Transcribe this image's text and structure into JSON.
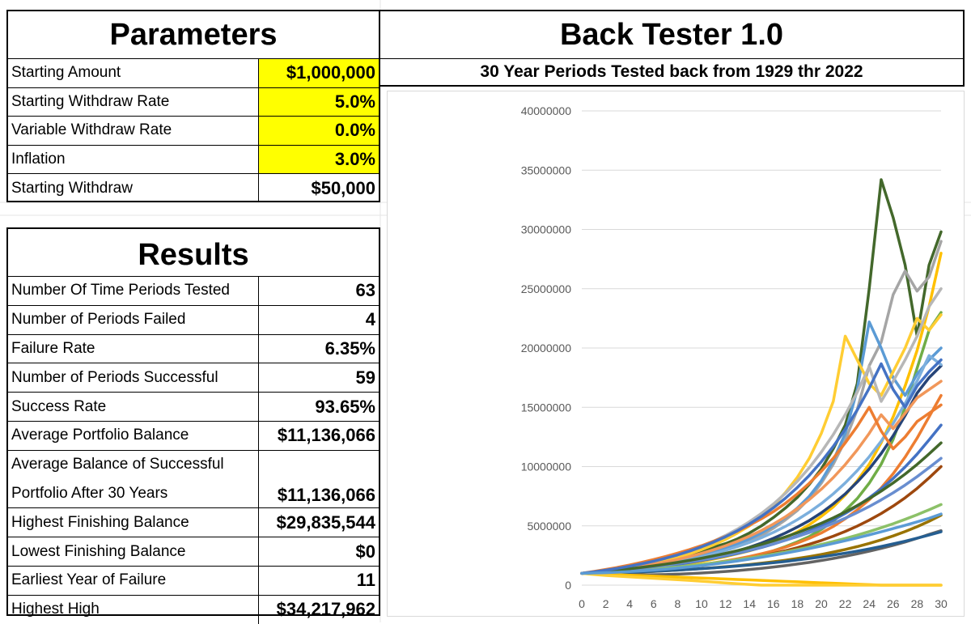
{
  "parameters": {
    "title": "Parameters",
    "rows": [
      {
        "label": "Starting Amount",
        "value": "$1,000,000",
        "highlight": true
      },
      {
        "label": "Starting Withdraw Rate",
        "value": "5.0%",
        "highlight": true
      },
      {
        "label": "Variable Withdraw Rate",
        "value": "0.0%",
        "highlight": true
      },
      {
        "label": "Inflation",
        "value": "3.0%",
        "highlight": true
      },
      {
        "label": "Starting Withdraw",
        "value": "$50,000",
        "highlight": false
      }
    ]
  },
  "results": {
    "title": "Results",
    "rows": [
      {
        "label": "Number Of Time Periods Tested",
        "value": "63"
      },
      {
        "label": "Number of Periods Failed",
        "value": "4"
      },
      {
        "label": "Failure Rate",
        "value": "6.35%"
      },
      {
        "label": "Number of Periods Successful",
        "value": "59"
      },
      {
        "label": "Success Rate",
        "value": "93.65%"
      },
      {
        "label": "Average Portfolio Balance",
        "value": "$11,136,066"
      },
      {
        "label": "Average Balance of Successful",
        "label2": "Portfolio After 30 Years",
        "value": "$11,136,066"
      },
      {
        "label": "Highest Finishing Balance",
        "value": "$29,835,544"
      },
      {
        "label": "Lowest Finishing Balance",
        "value": "$0"
      },
      {
        "label": "Earliest Year of Failure",
        "value": "11"
      },
      {
        "label": "Highest High",
        "value": "$34,217,962"
      }
    ]
  },
  "backtester": {
    "title": "Back Tester 1.0",
    "subtitle": "30 Year Periods Tested back from 1929 thr 2022"
  },
  "colors": {
    "highlight": "#ffff00",
    "grid": "#d9d9d9",
    "palette": [
      "#4472c4",
      "#ed7d31",
      "#a5a5a5",
      "#ffc000",
      "#5b9bd5",
      "#70ad47",
      "#264478",
      "#9e480e",
      "#636363",
      "#997300",
      "#255e91",
      "#43682b",
      "#698ed0",
      "#f1975a",
      "#b7b7b7",
      "#ffcd33",
      "#7cafdd",
      "#8cc168"
    ]
  },
  "chart_data": {
    "type": "line",
    "title": "",
    "xlabel": "",
    "ylabel": "",
    "xlim": [
      0,
      30
    ],
    "ylim": [
      0,
      40000000
    ],
    "x_ticks": [
      0,
      2,
      4,
      6,
      8,
      10,
      12,
      14,
      16,
      18,
      20,
      22,
      24,
      26,
      28,
      30
    ],
    "y_ticks": [
      0,
      5000000,
      10000000,
      15000000,
      20000000,
      25000000,
      30000000,
      35000000,
      40000000
    ],
    "x_tick_labels": [
      "0",
      "2",
      "4",
      "6",
      "8",
      "10",
      "12",
      "14",
      "16",
      "18",
      "20",
      "22",
      "24",
      "26",
      "28",
      "30"
    ],
    "y_tick_labels": [
      "0",
      "5000000",
      "10000000",
      "15000000",
      "20000000",
      "25000000",
      "30000000",
      "35000000",
      "40000000"
    ],
    "grid": "horizontal",
    "legend": "none",
    "x": [
      0,
      1,
      2,
      3,
      4,
      5,
      6,
      7,
      8,
      9,
      10,
      11,
      12,
      13,
      14,
      15,
      16,
      17,
      18,
      19,
      20,
      21,
      22,
      23,
      24,
      25,
      26,
      27,
      28,
      29,
      30
    ],
    "series_count_tested": 63,
    "series": [
      {
        "color": "#43682b",
        "values": [
          1000000,
          1100000,
          1250000,
          1400000,
          1500000,
          1700000,
          1900000,
          2100000,
          2300000,
          2600000,
          2900000,
          3200000,
          3500000,
          3900000,
          4400000,
          5000000,
          5700000,
          6500000,
          7400000,
          8500000,
          9800000,
          11500000,
          13500000,
          17000000,
          25000000,
          34200000,
          31000000,
          27000000,
          21000000,
          27000000,
          29800000
        ]
      },
      {
        "color": "#a5a5a5",
        "values": [
          1000000,
          1050000,
          1150000,
          1250000,
          1350000,
          1500000,
          1650000,
          1800000,
          2000000,
          2200000,
          2400000,
          2700000,
          3000000,
          3300000,
          3700000,
          4200000,
          4800000,
          5500000,
          6300000,
          7300000,
          8600000,
          10200000,
          12200000,
          14800000,
          18500000,
          20500000,
          24500000,
          26500000,
          24800000,
          26000000,
          29000000
        ]
      },
      {
        "color": "#ffc000",
        "values": [
          1000000,
          1020000,
          1100000,
          1180000,
          1260000,
          1350000,
          1450000,
          1560000,
          1700000,
          1850000,
          2000000,
          2200000,
          2400000,
          2650000,
          2900000,
          3200000,
          3600000,
          4000000,
          4500000,
          5100000,
          5800000,
          6600000,
          7600000,
          8800000,
          10200000,
          12000000,
          14200000,
          16800000,
          19800000,
          23500000,
          28000000
        ]
      },
      {
        "color": "#70ad47",
        "values": [
          1000000,
          950000,
          1000000,
          1050000,
          1100000,
          1180000,
          1260000,
          1350000,
          1450000,
          1560000,
          1680000,
          1820000,
          1980000,
          2150000,
          2350000,
          2600000,
          2900000,
          3250000,
          3650000,
          4100000,
          4700000,
          5400000,
          6300000,
          7300000,
          8600000,
          10200000,
          12300000,
          15000000,
          18300000,
          21500000,
          23000000
        ]
      },
      {
        "color": "#5b9bd5",
        "values": [
          1000000,
          1080000,
          1180000,
          1300000,
          1420000,
          1560000,
          1720000,
          1900000,
          2100000,
          2320000,
          2560000,
          2850000,
          3150000,
          3500000,
          3900000,
          4400000,
          5000000,
          5700000,
          6500000,
          7500000,
          8800000,
          10500000,
          12800000,
          16500000,
          22200000,
          20000000,
          17500000,
          16000000,
          17800000,
          19000000,
          20000000
        ]
      },
      {
        "color": "#ffcd33",
        "values": [
          1000000,
          1100000,
          1220000,
          1350000,
          1500000,
          1680000,
          1880000,
          2100000,
          2350000,
          2650000,
          3000000,
          3400000,
          3850000,
          4400000,
          5000000,
          5800000,
          6700000,
          7800000,
          9100000,
          10700000,
          12800000,
          15500000,
          21000000,
          19000000,
          17000000,
          16000000,
          18000000,
          20000000,
          22500000,
          21500000,
          22800000
        ]
      },
      {
        "color": "#264478",
        "values": [
          1000000,
          1060000,
          1130000,
          1210000,
          1300000,
          1400000,
          1520000,
          1650000,
          1800000,
          1960000,
          2150000,
          2360000,
          2600000,
          2880000,
          3200000,
          3550000,
          3950000,
          4400000,
          4900000,
          5450000,
          6100000,
          6850000,
          7700000,
          8700000,
          9800000,
          11100000,
          12600000,
          14300000,
          16200000,
          17500000,
          18500000
        ]
      },
      {
        "color": "#ed7d31",
        "values": [
          1000000,
          1000000,
          1050000,
          1100000,
          1160000,
          1230000,
          1310000,
          1400000,
          1500000,
          1610000,
          1740000,
          1880000,
          2040000,
          2220000,
          2420000,
          2650000,
          2900000,
          3200000,
          3550000,
          3950000,
          4400000,
          4950000,
          5600000,
          6350000,
          7200000,
          8200000,
          9400000,
          10800000,
          12400000,
          14200000,
          16000000
        ]
      },
      {
        "color": "#4472c4",
        "values": [
          1000000,
          1050000,
          1120000,
          1200000,
          1290000,
          1390000,
          1500000,
          1620000,
          1760000,
          1910000,
          2080000,
          2260000,
          2460000,
          2680000,
          2920000,
          3180000,
          3470000,
          3790000,
          4150000,
          4550000,
          5000000,
          5500000,
          6050000,
          6670000,
          7360000,
          8130000,
          9000000,
          9970000,
          11050000,
          12250000,
          13500000
        ]
      },
      {
        "color": "#997300",
        "values": [
          1000000,
          980000,
          1000000,
          1030000,
          1070000,
          1110000,
          1160000,
          1210000,
          1270000,
          1330000,
          1400000,
          1470000,
          1550000,
          1640000,
          1740000,
          1850000,
          1970000,
          2100000,
          2250000,
          2410000,
          2590000,
          2790000,
          3010000,
          3250000,
          3520000,
          3820000,
          4150000,
          4520000,
          4930000,
          5390000,
          5900000
        ]
      },
      {
        "color": "#9e480e",
        "values": [
          1000000,
          1030000,
          1070000,
          1120000,
          1180000,
          1240000,
          1310000,
          1390000,
          1480000,
          1580000,
          1690000,
          1810000,
          1950000,
          2100000,
          2270000,
          2460000,
          2670000,
          2900000,
          3160000,
          3450000,
          3770000,
          4130000,
          4530000,
          4980000,
          5480000,
          6040000,
          6670000,
          7370000,
          8160000,
          9050000,
          10000000
        ]
      },
      {
        "color": "#636363",
        "values": [
          1000000,
          940000,
          900000,
          880000,
          870000,
          870000,
          880000,
          900000,
          930000,
          970000,
          1020000,
          1080000,
          1150000,
          1230000,
          1320000,
          1420000,
          1530000,
          1650000,
          1780000,
          1920000,
          2080000,
          2250000,
          2440000,
          2640000,
          2860000,
          3100000,
          3360000,
          3640000,
          3950000,
          4280000,
          4600000
        ]
      },
      {
        "color": "#7cafdd",
        "values": [
          1000000,
          1070000,
          1160000,
          1260000,
          1370000,
          1500000,
          1640000,
          1800000,
          1980000,
          2180000,
          2400000,
          2650000,
          2930000,
          3250000,
          3600000,
          4000000,
          4450000,
          4950000,
          5520000,
          6160000,
          6880000,
          7700000,
          8620000,
          9660000,
          10830000,
          12150000,
          13640000,
          15320000,
          17220000,
          19360000,
          18600000
        ]
      },
      {
        "color": "#f1975a",
        "values": [
          1000000,
          1090000,
          1200000,
          1320000,
          1450000,
          1600000,
          1770000,
          1960000,
          2170000,
          2410000,
          2680000,
          2980000,
          3320000,
          3700000,
          4130000,
          4610000,
          5150000,
          5760000,
          6450000,
          7220000,
          8090000,
          9070000,
          10170000,
          11410000,
          12800000,
          14370000,
          13200000,
          14500000,
          15800000,
          16500000,
          17200000
        ]
      },
      {
        "color": "#255e91",
        "values": [
          1000000,
          1010000,
          1030000,
          1060000,
          1090000,
          1130000,
          1170000,
          1220000,
          1270000,
          1330000,
          1390000,
          1460000,
          1530000,
          1610000,
          1700000,
          1790000,
          1890000,
          2000000,
          2120000,
          2250000,
          2390000,
          2540000,
          2700000,
          2870000,
          3060000,
          3260000,
          3480000,
          3710000,
          3960000,
          4230000,
          4500000
        ]
      },
      {
        "color": "#b7b7b7",
        "values": [
          1000000,
          1120000,
          1260000,
          1420000,
          1600000,
          1800000,
          2030000,
          2290000,
          2580000,
          2910000,
          3290000,
          3710000,
          4190000,
          4730000,
          5350000,
          6050000,
          6840000,
          7740000,
          8760000,
          9910000,
          11220000,
          12700000,
          14380000,
          16280000,
          18430000,
          15500000,
          17200000,
          19000000,
          21000000,
          23500000,
          25000000
        ]
      },
      {
        "color": "#ffc000",
        "values": [
          1000000,
          960000,
          920000,
          880000,
          840000,
          800000,
          760000,
          720000,
          680000,
          640000,
          600000,
          560000,
          520000,
          480000,
          440000,
          400000,
          360000,
          320000,
          280000,
          240000,
          200000,
          160000,
          120000,
          80000,
          40000,
          0,
          0,
          0,
          0,
          0,
          0
        ]
      },
      {
        "color": "#ffcd33",
        "values": [
          1000000,
          900000,
          820000,
          760000,
          700000,
          640000,
          580000,
          520000,
          460000,
          400000,
          330000,
          260000,
          190000,
          120000,
          60000,
          0,
          0,
          0,
          0,
          0,
          0,
          0,
          0,
          0,
          0,
          0,
          0,
          0,
          0,
          0,
          0
        ]
      },
      {
        "color": "#8cc168",
        "values": [
          1000000,
          1040000,
          1090000,
          1150000,
          1210000,
          1280000,
          1360000,
          1450000,
          1540000,
          1640000,
          1750000,
          1870000,
          2000000,
          2140000,
          2290000,
          2450000,
          2620000,
          2800000,
          3000000,
          3210000,
          3440000,
          3680000,
          3940000,
          4220000,
          4520000,
          4840000,
          5180000,
          5550000,
          5940000,
          6360000,
          6800000
        ]
      },
      {
        "color": "#698ed0",
        "values": [
          1000000,
          1060000,
          1140000,
          1230000,
          1330000,
          1440000,
          1560000,
          1690000,
          1830000,
          1980000,
          2150000,
          2330000,
          2530000,
          2740000,
          2970000,
          3220000,
          3490000,
          3780000,
          4100000,
          4440000,
          4810000,
          5210000,
          5650000,
          6120000,
          6630000,
          7190000,
          7790000,
          8440000,
          9150000,
          9910000,
          10700000
        ]
      },
      {
        "color": "#43682b",
        "values": [
          1000000,
          1080000,
          1170000,
          1270000,
          1380000,
          1500000,
          1630000,
          1770000,
          1920000,
          2090000,
          2270000,
          2470000,
          2680000,
          2910000,
          3170000,
          3440000,
          3740000,
          4070000,
          4420000,
          4810000,
          5220000,
          5680000,
          6170000,
          6710000,
          7290000,
          7930000,
          8620000,
          9370000,
          10180000,
          11070000,
          12000000
        ]
      },
      {
        "color": "#ed7d31",
        "values": [
          1000000,
          1150000,
          1320000,
          1500000,
          1700000,
          1920000,
          2160000,
          2420000,
          2700000,
          3000000,
          3330000,
          3700000,
          4100000,
          4550000,
          5050000,
          5600000,
          6200000,
          6900000,
          7700000,
          8600000,
          9600000,
          10700000,
          12000000,
          13400000,
          15000000,
          13000000,
          11500000,
          12500000,
          13800000,
          14500000,
          15200000
        ]
      },
      {
        "color": "#4472c4",
        "values": [
          1000000,
          1120000,
          1260000,
          1420000,
          1600000,
          1800000,
          2020000,
          2270000,
          2550000,
          2870000,
          3230000,
          3630000,
          4080000,
          4590000,
          5160000,
          5800000,
          6520000,
          7330000,
          8240000,
          9260000,
          10410000,
          11700000,
          13150000,
          14780000,
          16610000,
          18670000,
          16500000,
          15000000,
          16800000,
          18000000,
          19000000
        ]
      },
      {
        "color": "#5b9bd5",
        "values": [
          1000000,
          1020000,
          1050000,
          1090000,
          1140000,
          1200000,
          1270000,
          1350000,
          1440000,
          1540000,
          1650000,
          1770000,
          1900000,
          2040000,
          2190000,
          2350000,
          2520000,
          2700000,
          2890000,
          3090000,
          3300000,
          3520000,
          3750000,
          3990000,
          4240000,
          4500000,
          4770000,
          5050000,
          5340000,
          5640000,
          6000000
        ]
      }
    ]
  }
}
